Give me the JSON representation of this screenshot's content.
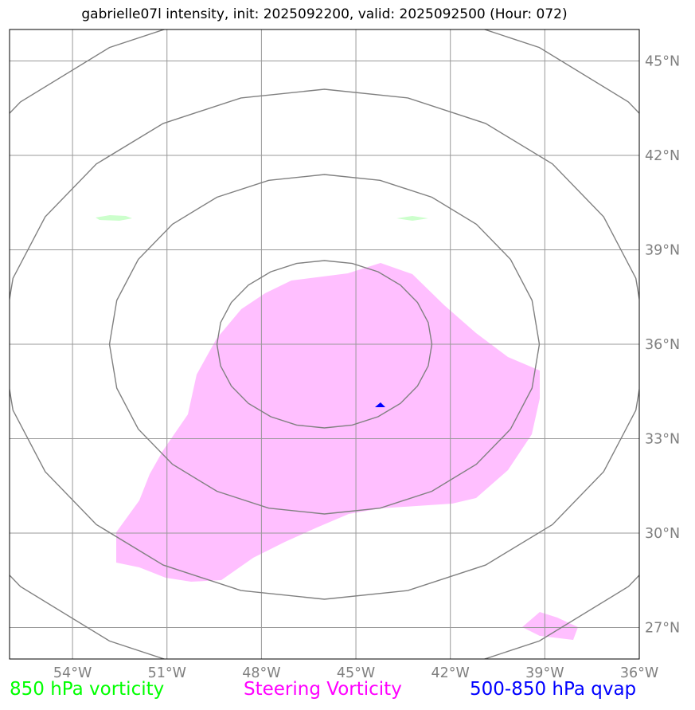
{
  "title": "gabrielle07l intensity, init: 2025092200, valid: 2025092500 (Hour: 072)",
  "map": {
    "lon_range": [
      -56,
      -36
    ],
    "lat_range": [
      26,
      46
    ],
    "lon_ticks": [
      -54,
      -51,
      -48,
      -45,
      -42,
      -39,
      -36
    ],
    "lon_tick_labels": [
      "54°W",
      "51°W",
      "48°W",
      "45°W",
      "42°W",
      "39°W",
      "36°W"
    ],
    "lat_ticks": [
      27,
      30,
      33,
      36,
      39,
      42,
      45
    ],
    "lat_tick_labels": [
      "27°N",
      "30°N",
      "33°N",
      "36°N",
      "39°N",
      "42°N",
      "45°N"
    ],
    "gridlines": true,
    "range_rings_center": [
      -46,
      36
    ],
    "colors": {
      "steering_vorticity": "#ffbfff",
      "vorticity_850": "#ccffcc",
      "qvap": "#0000ff",
      "rings": "#808080",
      "grid": "#999999"
    }
  },
  "legend": {
    "vorticity_850": "850 hPa vorticity",
    "steering_vorticity": "Steering Vorticity",
    "qvap": "500-850 hPa qvap"
  }
}
